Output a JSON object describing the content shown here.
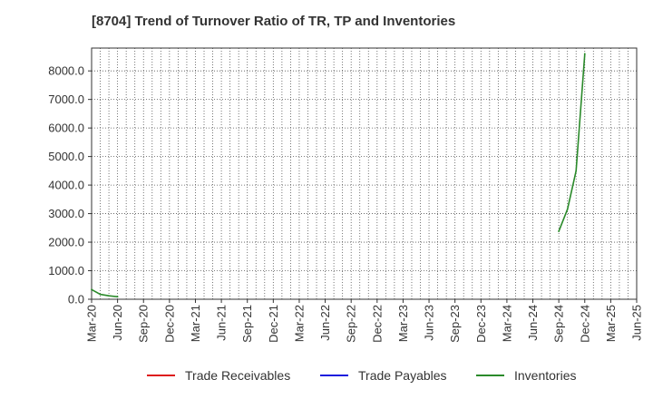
{
  "chart_data": {
    "type": "line",
    "title": "[8704]  Trend of Turnover Ratio of TR, TP and Inventories",
    "xlabel": "",
    "ylabel": "",
    "ylim": [
      0,
      8800
    ],
    "y_ticks": [
      0,
      1000,
      2000,
      3000,
      4000,
      5000,
      6000,
      7000,
      8000
    ],
    "y_tick_labels": [
      "0.0",
      "1000.0",
      "2000.0",
      "3000.0",
      "4000.0",
      "5000.0",
      "6000.0",
      "7000.0",
      "8000.0"
    ],
    "x_tick_labels": [
      "Mar-20",
      "Jun-20",
      "Sep-20",
      "Dec-20",
      "Mar-21",
      "Jun-21",
      "Sep-21",
      "Dec-21",
      "Mar-22",
      "Jun-22",
      "Sep-22",
      "Dec-22",
      "Mar-23",
      "Jun-23",
      "Sep-23",
      "Dec-23",
      "Mar-24",
      "Jun-24",
      "Sep-24",
      "Dec-24",
      "Mar-25",
      "Jun-25"
    ],
    "x_months": [
      "Mar-20",
      "Apr-20",
      "May-20",
      "Jun-20",
      "Jul-20",
      "Aug-20",
      "Sep-20",
      "Oct-20",
      "Nov-20",
      "Dec-20",
      "Jan-21",
      "Feb-21",
      "Mar-21",
      "Apr-21",
      "May-21",
      "Jun-21",
      "Jul-21",
      "Aug-21",
      "Sep-21",
      "Oct-21",
      "Nov-21",
      "Dec-21",
      "Jan-22",
      "Feb-22",
      "Mar-22",
      "Apr-22",
      "May-22",
      "Jun-22",
      "Jul-22",
      "Aug-22",
      "Sep-22",
      "Oct-22",
      "Nov-22",
      "Dec-22",
      "Jan-23",
      "Feb-23",
      "Mar-23",
      "Apr-23",
      "May-23",
      "Jun-23",
      "Jul-23",
      "Aug-23",
      "Sep-23",
      "Oct-23",
      "Nov-23",
      "Dec-23",
      "Jan-24",
      "Feb-24",
      "Mar-24",
      "Apr-24",
      "May-24",
      "Jun-24",
      "Jul-24",
      "Aug-24",
      "Sep-24",
      "Oct-24",
      "Nov-24",
      "Dec-24",
      "Jan-25",
      "Feb-25",
      "Mar-25",
      "Apr-25",
      "May-25",
      "Jun-25"
    ],
    "grid": true,
    "legend_position": "bottom",
    "series": [
      {
        "name": "Trade Receivables",
        "color": "#dd1c1c",
        "points": []
      },
      {
        "name": "Trade Payables",
        "color": "#1c1cdd",
        "points": []
      },
      {
        "name": "Inventories",
        "color": "#2a8a2a",
        "points": [
          {
            "x": "Mar-20",
            "y": 340
          },
          {
            "x": "Apr-20",
            "y": 170
          },
          {
            "x": "May-20",
            "y": 120
          },
          {
            "x": "Jun-20",
            "y": 90
          },
          {
            "x": "Sep-24",
            "y": 2380
          },
          {
            "x": "Oct-24",
            "y": 3150
          },
          {
            "x": "Nov-24",
            "y": 4500
          },
          {
            "x": "Dec-24",
            "y": 8600
          }
        ]
      }
    ]
  }
}
